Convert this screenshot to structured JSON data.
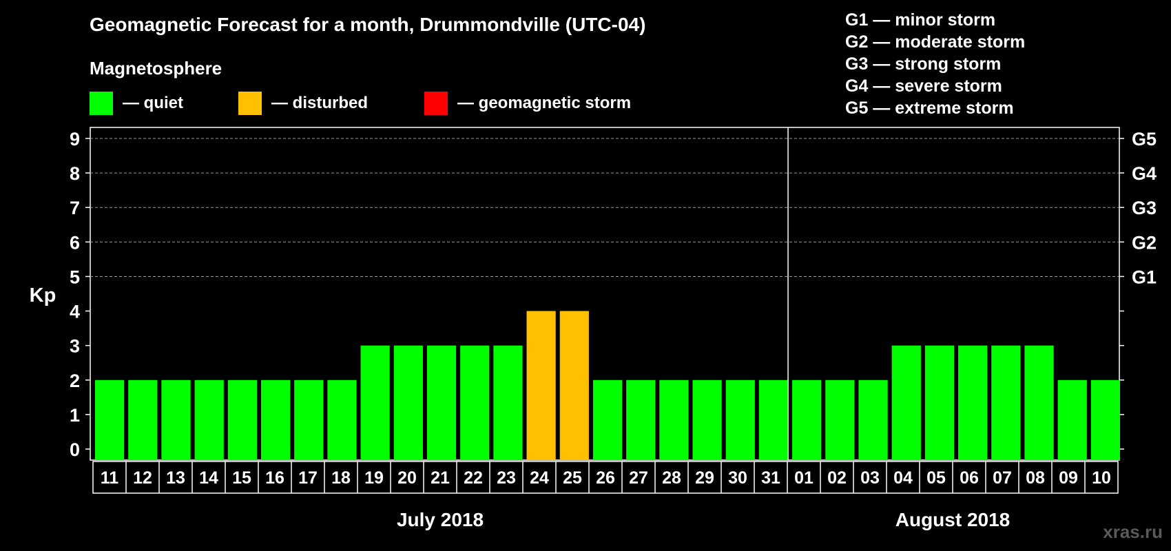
{
  "chart_data": {
    "type": "bar",
    "title": "Geomagnetic Forecast for a month, Drummondville (UTC-04)",
    "subtitle": "Magnetosphere",
    "ylabel": "Kp",
    "ylim": [
      0,
      9
    ],
    "y_ticks": [
      "0",
      "1",
      "2",
      "3",
      "4",
      "5",
      "6",
      "7",
      "8",
      "9"
    ],
    "right_ticks": [
      {
        "kp": 5,
        "label": "G1"
      },
      {
        "kp": 6,
        "label": "G2"
      },
      {
        "kp": 7,
        "label": "G3"
      },
      {
        "kp": 8,
        "label": "G4"
      },
      {
        "kp": 9,
        "label": "G5"
      }
    ],
    "categories": [
      "11",
      "12",
      "13",
      "14",
      "15",
      "16",
      "17",
      "18",
      "19",
      "20",
      "21",
      "22",
      "23",
      "24",
      "25",
      "26",
      "27",
      "28",
      "29",
      "30",
      "31",
      "01",
      "02",
      "03",
      "04",
      "05",
      "06",
      "07",
      "08",
      "09",
      "10"
    ],
    "values": [
      2,
      2,
      2,
      2,
      2,
      2,
      2,
      2,
      3,
      3,
      3,
      3,
      3,
      4,
      4,
      2,
      2,
      2,
      2,
      2,
      2,
      2,
      2,
      2,
      3,
      3,
      3,
      3,
      3,
      2,
      2
    ],
    "status": [
      "quiet",
      "quiet",
      "quiet",
      "quiet",
      "quiet",
      "quiet",
      "quiet",
      "quiet",
      "quiet",
      "quiet",
      "quiet",
      "quiet",
      "quiet",
      "disturbed",
      "disturbed",
      "quiet",
      "quiet",
      "quiet",
      "quiet",
      "quiet",
      "quiet",
      "quiet",
      "quiet",
      "quiet",
      "quiet",
      "quiet",
      "quiet",
      "quiet",
      "quiet",
      "quiet",
      "quiet"
    ],
    "months": [
      {
        "label": "July 2018",
        "start": 0,
        "end": 20
      },
      {
        "label": "August 2018",
        "start": 21,
        "end": 30
      }
    ],
    "legend": [
      {
        "key": "quiet",
        "label": "— quiet",
        "color": "#00ff00"
      },
      {
        "key": "disturbed",
        "label": "— disturbed",
        "color": "#ffc000"
      },
      {
        "key": "storm",
        "label": "— geomagnetic storm",
        "color": "#ff0000"
      }
    ],
    "storm_levels": [
      "G1 — minor storm",
      "G2 — moderate storm",
      "G3 — strong storm",
      "G4 — severe storm",
      "G5 — extreme storm"
    ],
    "grid": "dashed at 5-9"
  },
  "watermark": "xras.ru"
}
